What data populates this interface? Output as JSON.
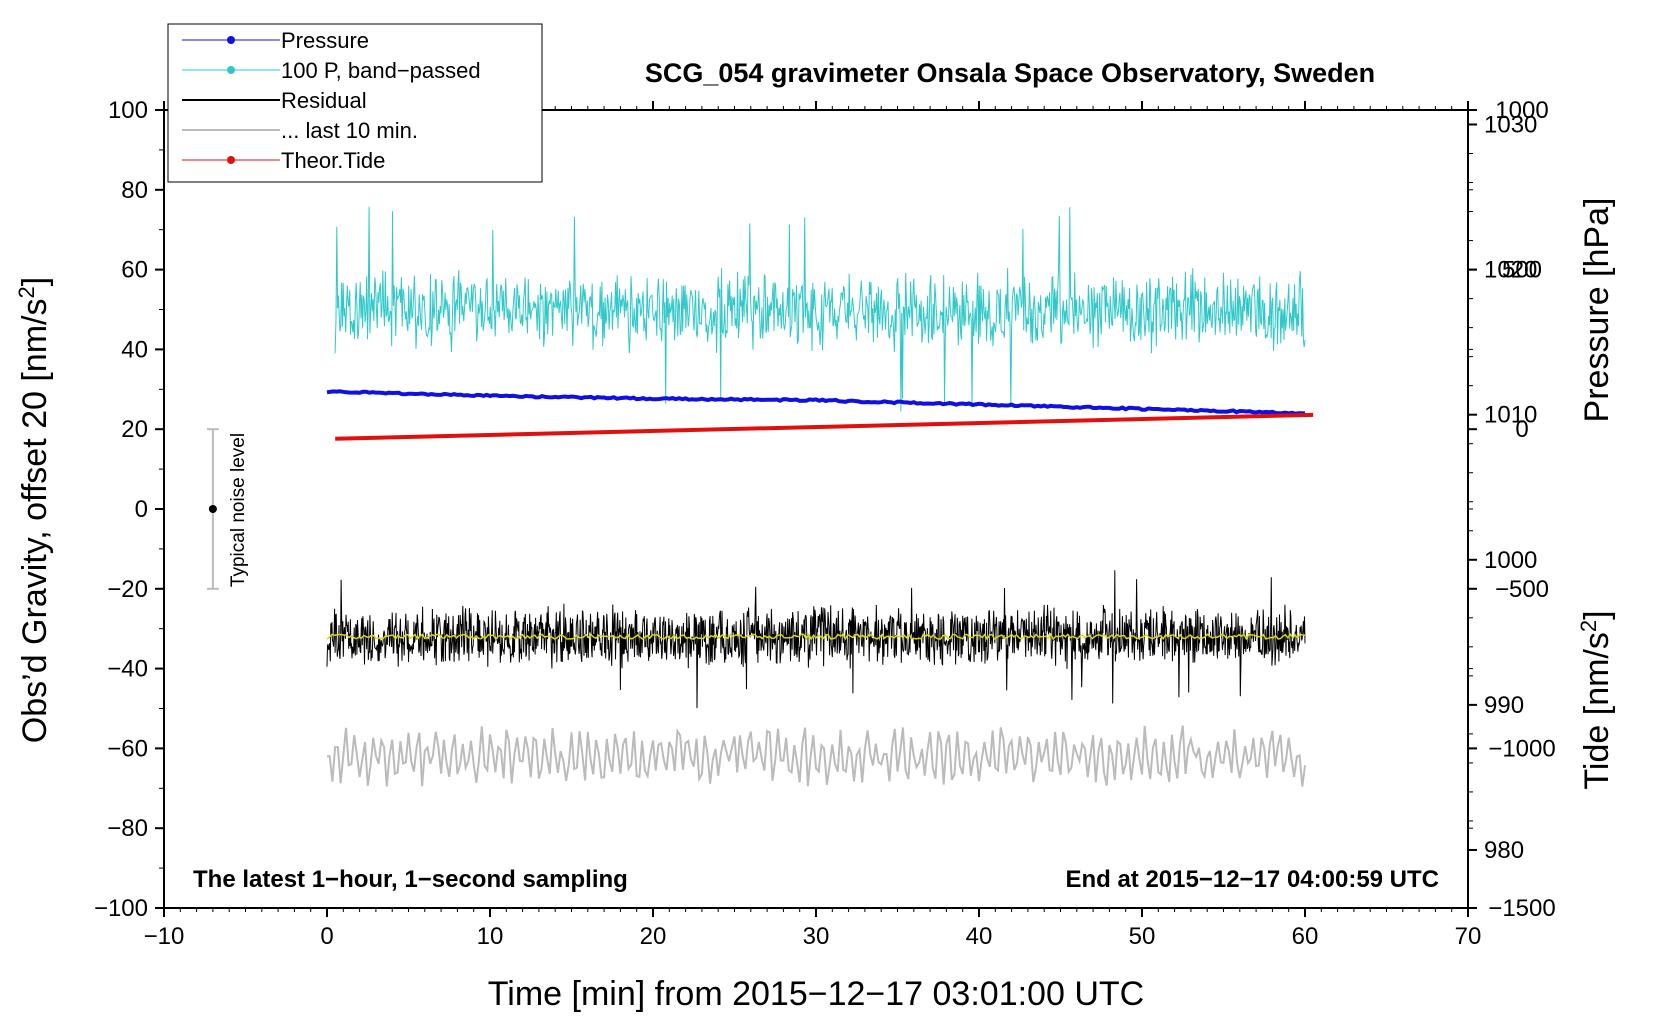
{
  "chart_data": {
    "type": "line",
    "title": "SCG_054 gravimeter Onsala Space Observatory, Sweden",
    "xlabel": "Time [min] from 2015−12−17 03:01:00 UTC",
    "ylabel_left": "Obs’d Gravity, offset 20 [nm/s",
    "ylabel_left_sup": "2",
    "ylabel_left_close": "]",
    "ylabel_right_pressure": "Pressure [hPa]",
    "ylabel_right_tide": "Tide [nm/s",
    "ylabel_right_tide_sup": "2",
    "ylabel_right_tide_close": "]",
    "xlim": [
      -10,
      70
    ],
    "ylim": [
      -100,
      100
    ],
    "pressure_ylim": [
      976,
      1031
    ],
    "tide_ylim": [
      -1500,
      1000
    ],
    "x_ticks": [
      {
        "value": -10,
        "label": "−10"
      },
      {
        "value": 0,
        "label": "0"
      },
      {
        "value": 10,
        "label": "10"
      },
      {
        "value": 20,
        "label": "20"
      },
      {
        "value": 30,
        "label": "30"
      },
      {
        "value": 40,
        "label": "40"
      },
      {
        "value": 50,
        "label": "50"
      },
      {
        "value": 60,
        "label": "60"
      },
      {
        "value": 70,
        "label": "70"
      }
    ],
    "y_ticks": [
      {
        "value": 100,
        "label": "100"
      },
      {
        "value": 80,
        "label": "80"
      },
      {
        "value": 60,
        "label": "60"
      },
      {
        "value": 40,
        "label": "40"
      },
      {
        "value": 20,
        "label": "20"
      },
      {
        "value": 0,
        "label": "0"
      },
      {
        "value": -20,
        "label": "−20"
      },
      {
        "value": -40,
        "label": "−40"
      },
      {
        "value": -60,
        "label": "−60"
      },
      {
        "value": -80,
        "label": "−80"
      },
      {
        "value": -100,
        "label": "−100"
      }
    ],
    "pressure_ticks": [
      {
        "value": 1030,
        "label": "1030"
      },
      {
        "value": 1020,
        "label": "1020"
      },
      {
        "value": 1010,
        "label": "1010"
      },
      {
        "value": 1000,
        "label": "1000"
      },
      {
        "value": 990,
        "label": "990"
      },
      {
        "value": 980,
        "label": "980"
      }
    ],
    "tide_ticks": [
      {
        "value": 1000,
        "label": "1000"
      },
      {
        "value": 500,
        "label": "500"
      },
      {
        "value": 0,
        "label": "0"
      },
      {
        "value": -500,
        "label": "−500"
      },
      {
        "value": -1000,
        "label": "−1000"
      },
      {
        "value": -1500,
        "label": "−1500"
      }
    ],
    "legend": {
      "placement": "top-left",
      "entries": [
        {
          "label": "Pressure",
          "color": "#1010e0",
          "marker": true
        },
        {
          "label": "100 P, band−passed",
          "color": "#30c8c8",
          "marker": true
        },
        {
          "label": "Residual",
          "color": "#000000",
          "marker": false
        },
        {
          "label": "... last 10 min.",
          "color": "#bbbbbb",
          "marker": false
        },
        {
          "label": "Theor.Tide",
          "color": "#e01010",
          "marker": true
        }
      ]
    },
    "noise_bar": {
      "x": -7,
      "center": 0,
      "low": -20,
      "high": 20,
      "label": "Typical noise level"
    },
    "note_left": "The latest 1−hour, 1−second sampling",
    "note_right": "End at 2015−12−17 04:00:59 UTC",
    "series": [
      {
        "name": "Pressure",
        "color": "#1010e0",
        "axis": "pressure",
        "x": [
          0,
          10,
          20,
          30,
          40,
          50,
          60
        ],
        "values": [
          1011.6,
          1011.3,
          1011.1,
          1011.0,
          1010.7,
          1010.4,
          1010.1
        ]
      },
      {
        "name": "100 P, band−passed",
        "color": "#30c8c8",
        "axis": "left",
        "x_range": [
          0.5,
          60
        ],
        "mean": 50,
        "amplitude": 8,
        "spike_min": 24,
        "spike_max": 76
      },
      {
        "name": "Residual",
        "color": "#000000",
        "axis": "left",
        "x_range": [
          0,
          60
        ],
        "mean": -32,
        "amplitude": 6,
        "spike_min": -50,
        "spike_max": -15
      },
      {
        "name": "Residual smoothed",
        "color": "#d8d810",
        "axis": "left",
        "x_range": [
          0,
          60
        ],
        "mean": -32
      },
      {
        "name": "... last 10 min.",
        "color": "#bbbbbb",
        "axis": "left",
        "x_range": [
          0,
          60
        ],
        "mean": -62,
        "amplitude": 6,
        "spike_min": -77,
        "spike_max": -50
      },
      {
        "name": "Theor.Tide",
        "color": "#e01010",
        "axis": "tide",
        "x": [
          0.5,
          60.5
        ],
        "values": [
          -30,
          45
        ]
      }
    ]
  }
}
